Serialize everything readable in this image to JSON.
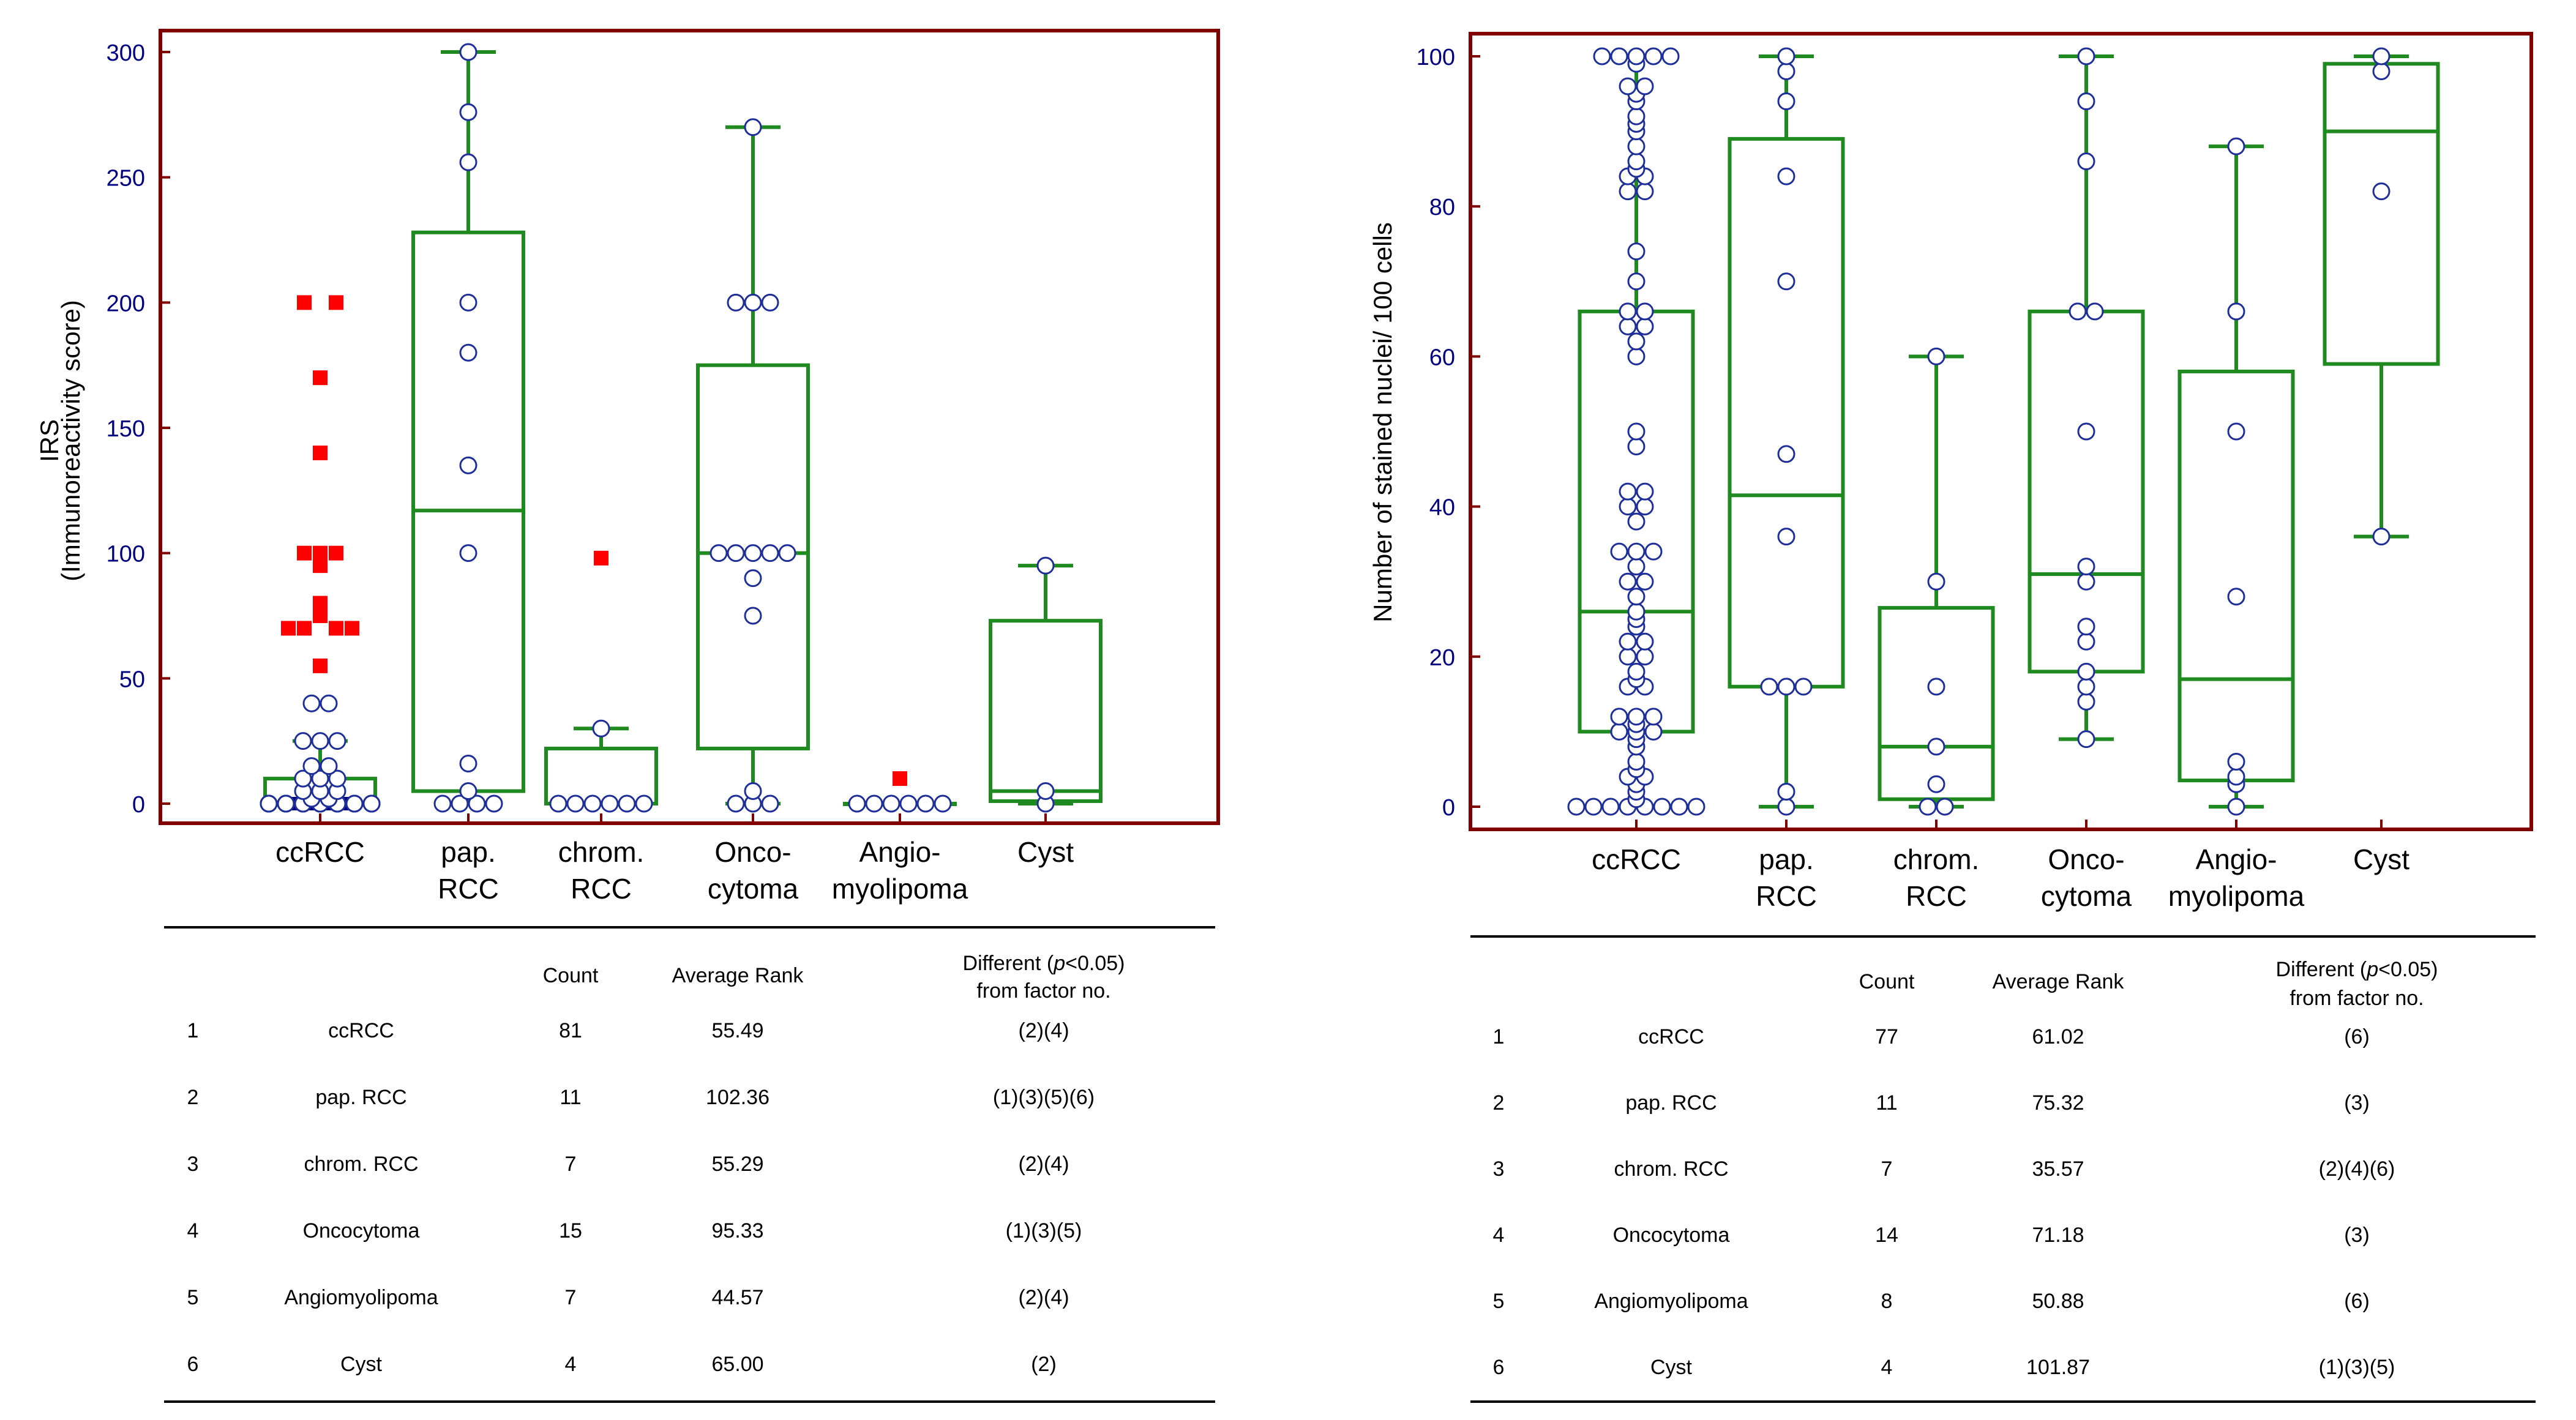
{
  "colors": {
    "frame": "#800000",
    "box": "#1f8a1f",
    "point_stroke": "#1f2f9a",
    "point_fill": "#ffffff",
    "outlier": "#ff0000",
    "tick_label": "#000080",
    "text": "#000000",
    "ccrcc_bar": "#000080"
  },
  "table_headers": {
    "count": "Count",
    "avg_rank": "Average Rank",
    "diff_line1_pre": "Different (",
    "diff_line1_p": "p",
    "diff_line1_post": "<0.05)",
    "diff_line2": "from factor no."
  },
  "chart_data": [
    {
      "type": "box",
      "ylabel_line1": "IRS",
      "ylabel_line2": "(Immunoreactivity score)",
      "ylim": [
        0,
        300
      ],
      "yticks": [
        "0",
        "50",
        "100",
        "150",
        "200",
        "250",
        "300"
      ],
      "grid": false,
      "categories": [
        [
          "ccRCC"
        ],
        [
          "pap.",
          "RCC"
        ],
        [
          "chrom.",
          "RCC"
        ],
        [
          "Onco-",
          "cytoma"
        ],
        [
          "Angio-",
          "myolipoma"
        ],
        [
          "Cyst"
        ]
      ],
      "boxes": [
        {
          "min": 0,
          "q1": 0,
          "median": 0,
          "q3": 10,
          "max": 25
        },
        {
          "min": 0,
          "q1": 5,
          "median": 117,
          "q3": 228,
          "max": 300
        },
        {
          "min": 0,
          "q1": 0,
          "median": 0,
          "q3": 22,
          "max": 30
        },
        {
          "min": 0,
          "q1": 22,
          "median": 100,
          "q3": 175,
          "max": 270
        },
        {
          "min": 0,
          "q1": 0,
          "median": 0,
          "q3": 0,
          "max": 0
        },
        {
          "min": 0,
          "q1": 1,
          "median": 5,
          "q3": 73,
          "max": 95
        }
      ],
      "points": [
        [
          0,
          0,
          0,
          0,
          0,
          0,
          0,
          0,
          0,
          0,
          0,
          0,
          0,
          0,
          0,
          0,
          0,
          0,
          0,
          0,
          0,
          0,
          2,
          2,
          5,
          5,
          5,
          10,
          10,
          10,
          15,
          15,
          25,
          25,
          25,
          40,
          40
        ],
        [
          0,
          0,
          0,
          0,
          5,
          16,
          100,
          135,
          180,
          200,
          256,
          276,
          300
        ],
        [
          0,
          0,
          0,
          0,
          0,
          0,
          30
        ],
        [
          0,
          0,
          0,
          5,
          75,
          90,
          100,
          100,
          100,
          100,
          100,
          200,
          200,
          200,
          270
        ],
        [
          0,
          0,
          0,
          0,
          0,
          0
        ],
        [
          0,
          5,
          95
        ]
      ],
      "outliers": [
        [
          {
            "v": 200,
            "o": -1
          },
          {
            "v": 200,
            "o": 1
          },
          {
            "v": 170,
            "o": 0
          },
          {
            "v": 140,
            "o": 0
          },
          {
            "v": 100,
            "o": -1
          },
          {
            "v": 100,
            "o": 0
          },
          {
            "v": 100,
            "o": 1
          },
          {
            "v": 95,
            "o": 0
          },
          {
            "v": 80,
            "o": 0
          },
          {
            "v": 75,
            "o": 0
          },
          {
            "v": 70,
            "o": -2
          },
          {
            "v": 70,
            "o": -1
          },
          {
            "v": 70,
            "o": 1
          },
          {
            "v": 70,
            "o": 2
          },
          {
            "v": 55,
            "o": 0
          }
        ],
        [],
        [
          {
            "v": 98,
            "o": 0
          }
        ],
        [],
        [
          {
            "v": 10,
            "o": 0
          }
        ],
        []
      ],
      "ccrcc_zero_bar": true
    },
    {
      "type": "box",
      "ylabel_line1": "Number of stained nuclei/ 100 cells",
      "ylabel_line2": "",
      "ylim": [
        0,
        100
      ],
      "yticks": [
        "0",
        "20",
        "40",
        "60",
        "80",
        "100"
      ],
      "grid": false,
      "categories": [
        [
          "ccRCC"
        ],
        [
          "pap.",
          "RCC"
        ],
        [
          "chrom.",
          "RCC"
        ],
        [
          "Onco-",
          "cytoma"
        ],
        [
          "Angio-",
          "myolipoma"
        ],
        [
          "Cyst"
        ]
      ],
      "boxes": [
        {
          "min": 0,
          "q1": 10,
          "median": 26,
          "q3": 66,
          "max": 100
        },
        {
          "min": 0,
          "q1": 16,
          "median": 41.5,
          "q3": 89,
          "max": 100
        },
        {
          "min": 0,
          "q1": 1,
          "median": 8,
          "q3": 26.5,
          "max": 60
        },
        {
          "min": 9,
          "q1": 18,
          "median": 31,
          "q3": 66,
          "max": 100
        },
        {
          "min": 0,
          "q1": 3.5,
          "median": 17,
          "q3": 58,
          "max": 88
        },
        {
          "min": 36,
          "q1": 59,
          "median": 90,
          "q3": 99,
          "max": 100
        }
      ],
      "points": [
        [
          0,
          0,
          0,
          0,
          0,
          0,
          0,
          0,
          1,
          2,
          3,
          4,
          4,
          5,
          6,
          8,
          9,
          10,
          10,
          10,
          11,
          12,
          12,
          12,
          16,
          16,
          17,
          18,
          20,
          20,
          22,
          22,
          24,
          25,
          26,
          28,
          30,
          30,
          32,
          34,
          34,
          34,
          38,
          40,
          40,
          42,
          42,
          48,
          50,
          60,
          62,
          64,
          64,
          66,
          66,
          70,
          74,
          82,
          82,
          84,
          84,
          85,
          86,
          88,
          90,
          91,
          92,
          94,
          95,
          96,
          96,
          99,
          100,
          100,
          100,
          100,
          100
        ],
        [
          0,
          2,
          16,
          16,
          16,
          36,
          47,
          70,
          84,
          94,
          98,
          100
        ],
        [
          0,
          0,
          3,
          8,
          16,
          30,
          60
        ],
        [
          9,
          14,
          16,
          18,
          22,
          24,
          30,
          32,
          50,
          66,
          66,
          86,
          94,
          100
        ],
        [
          0,
          3,
          4,
          6,
          28,
          50,
          66,
          88
        ],
        [
          36,
          82,
          98,
          100
        ]
      ],
      "outliers": [
        [],
        [],
        [],
        [],
        [],
        []
      ],
      "ccrcc_zero_bar": false
    }
  ],
  "tables": [
    {
      "rows": [
        {
          "no": "1",
          "name": "ccRCC",
          "count": "81",
          "rank": "55.49",
          "diff": "(2)(4)"
        },
        {
          "no": "2",
          "name": "pap. RCC",
          "count": "11",
          "rank": "102.36",
          "diff": "(1)(3)(5)(6)"
        },
        {
          "no": "3",
          "name": "chrom. RCC",
          "count": "7",
          "rank": "55.29",
          "diff": "(2)(4)"
        },
        {
          "no": "4",
          "name": "Oncocytoma",
          "count": "15",
          "rank": "95.33",
          "diff": "(1)(3)(5)"
        },
        {
          "no": "5",
          "name": "Angiomyolipoma",
          "count": "7",
          "rank": "44.57",
          "diff": "(2)(4)"
        },
        {
          "no": "6",
          "name": "Cyst",
          "count": "4",
          "rank": "65.00",
          "diff": "(2)"
        }
      ]
    },
    {
      "rows": [
        {
          "no": "1",
          "name": "ccRCC",
          "count": "77",
          "rank": "61.02",
          "diff": "(6)"
        },
        {
          "no": "2",
          "name": "pap. RCC",
          "count": "11",
          "rank": "75.32",
          "diff": "(3)"
        },
        {
          "no": "3",
          "name": "chrom. RCC",
          "count": "7",
          "rank": "35.57",
          "diff": "(2)(4)(6)"
        },
        {
          "no": "4",
          "name": "Oncocytoma",
          "count": "14",
          "rank": "71.18",
          "diff": "(3)"
        },
        {
          "no": "5",
          "name": "Angiomyolipoma",
          "count": "8",
          "rank": "50.88",
          "diff": "(6)"
        },
        {
          "no": "6",
          "name": "Cyst",
          "count": "4",
          "rank": "101.87",
          "diff": "(1)(3)(5)"
        }
      ]
    }
  ]
}
